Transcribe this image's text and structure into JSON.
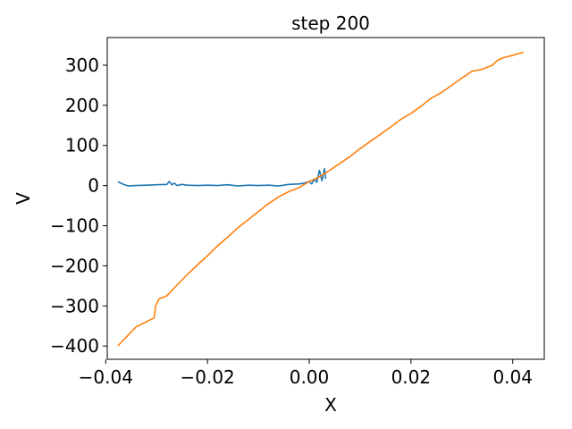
{
  "chart_data": {
    "type": "line",
    "title": "step 200",
    "xlabel": "X",
    "ylabel": "V",
    "xlim": [
      -0.0397,
      0.0462
    ],
    "ylim": [
      -433,
      369
    ],
    "xticks": [
      -0.04,
      -0.02,
      0.0,
      0.02,
      0.04
    ],
    "xtick_labels": [
      "−0.04",
      "−0.02",
      "0.00",
      "0.02",
      "0.04"
    ],
    "yticks": [
      -400,
      -300,
      -200,
      -100,
      0,
      100,
      200,
      300
    ],
    "ytick_labels": [
      "−400",
      "−300",
      "−200",
      "−100",
      "0",
      "100",
      "200",
      "300"
    ],
    "grid": false,
    "series": [
      {
        "color": "#1f77b4",
        "x": [
          -0.0375,
          -0.0365,
          -0.0355,
          -0.034,
          -0.032,
          -0.03,
          -0.028,
          -0.0275,
          -0.027,
          -0.0265,
          -0.026,
          -0.025,
          -0.024,
          -0.022,
          -0.02,
          -0.018,
          -0.016,
          -0.014,
          -0.012,
          -0.01,
          -0.008,
          -0.006,
          -0.004,
          -0.002,
          -0.001,
          0.0,
          0.0005,
          0.001,
          0.0015,
          0.002,
          0.0025,
          0.003,
          0.0032
        ],
        "y": [
          9,
          3,
          -1,
          0,
          1,
          2,
          3,
          10,
          2,
          6,
          0,
          3,
          1,
          0,
          1,
          0,
          2,
          -1,
          1,
          0,
          1,
          -1,
          3,
          4,
          6,
          10,
          4,
          16,
          8,
          38,
          12,
          42,
          18
        ]
      },
      {
        "color": "#ff7f0e",
        "x": [
          -0.0375,
          -0.034,
          -0.0305,
          -0.0302,
          -0.0295,
          -0.028,
          -0.026,
          -0.024,
          -0.022,
          -0.02,
          -0.018,
          -0.016,
          -0.014,
          -0.012,
          -0.01,
          -0.008,
          -0.006,
          -0.004,
          -0.002,
          0.0,
          0.002,
          0.004,
          0.006,
          0.008,
          0.01,
          0.012,
          0.014,
          0.016,
          0.018,
          0.02,
          0.022,
          0.024,
          0.026,
          0.028,
          0.03,
          0.032,
          0.034,
          0.036,
          0.037,
          0.038,
          0.04,
          0.042
        ],
        "y": [
          -398,
          -352,
          -330,
          -300,
          -282,
          -275,
          -248,
          -222,
          -198,
          -175,
          -150,
          -128,
          -105,
          -85,
          -65,
          -45,
          -28,
          -15,
          -5,
          10,
          22,
          38,
          55,
          72,
          92,
          110,
          128,
          146,
          165,
          180,
          198,
          218,
          232,
          250,
          268,
          285,
          290,
          300,
          312,
          318,
          325,
          332
        ]
      }
    ]
  }
}
